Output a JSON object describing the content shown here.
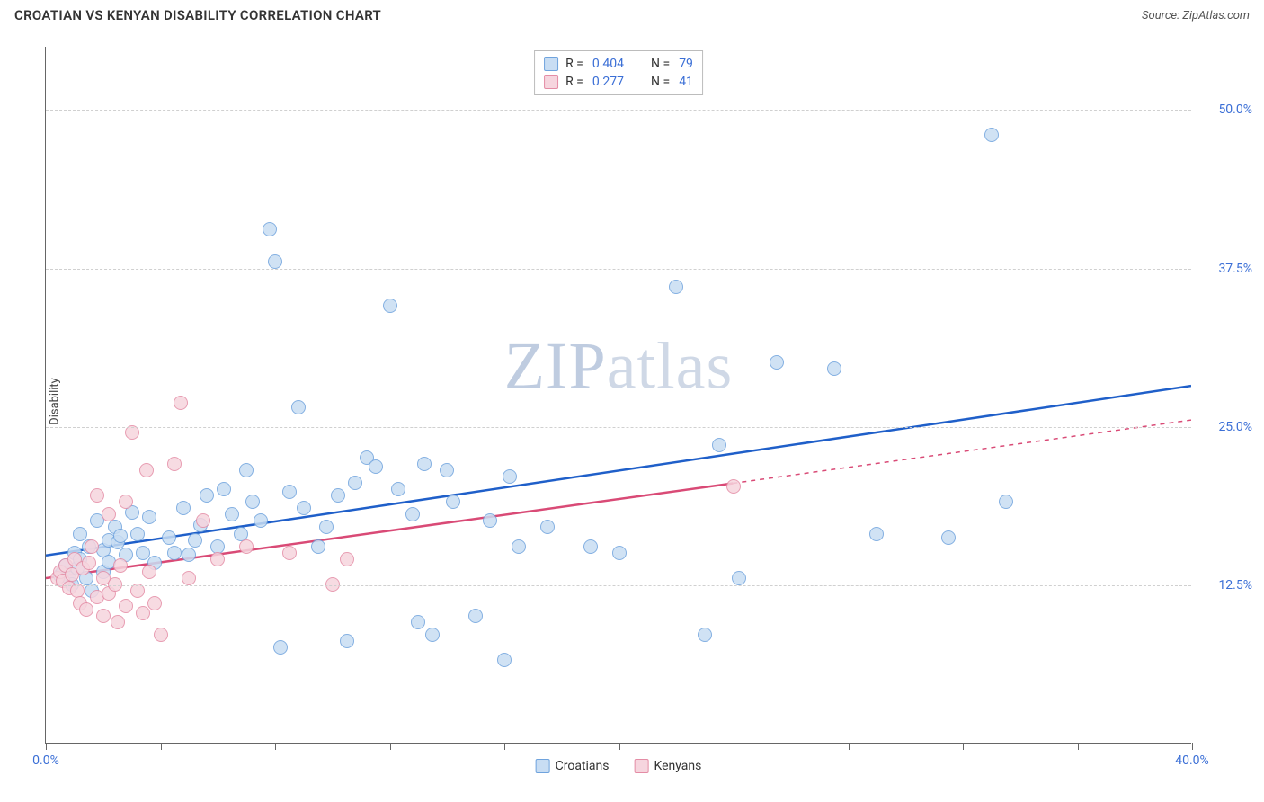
{
  "header": {
    "title": "CROATIAN VS KENYAN DISABILITY CORRELATION CHART",
    "source": "Source: ZipAtlas.com"
  },
  "watermark": {
    "zip": "ZIP",
    "atlas": "atlas"
  },
  "chart": {
    "type": "scatter",
    "ylabel": "Disability",
    "xlim": [
      0,
      40
    ],
    "ylim": [
      0,
      55
    ],
    "xtick_positions": [
      0,
      4,
      8,
      12,
      16,
      20,
      24,
      28,
      32,
      36,
      40
    ],
    "xtick_labels": {
      "0": "0.0%",
      "40": "40.0%"
    },
    "ytick_positions": [
      12.5,
      25.0,
      37.5,
      50.0
    ],
    "ytick_labels": [
      "12.5%",
      "25.0%",
      "37.5%",
      "50.0%"
    ],
    "grid_color": "#d0d0d0",
    "axis_color": "#666666",
    "background_color": "#ffffff",
    "tick_label_color": "#3b6fd6",
    "point_radius": 8,
    "series": [
      {
        "name": "Croatians",
        "fill": "#c8ddf3",
        "stroke": "#6fa3dd",
        "trend_color": "#1f5fc9",
        "trend": {
          "x1": 0,
          "y1": 14.8,
          "x2": 40,
          "y2": 28.2,
          "dash_after_x": null
        },
        "stats": {
          "R": "0.404",
          "N": "79"
        },
        "points": [
          [
            0.5,
            13.2
          ],
          [
            0.6,
            13.5
          ],
          [
            0.7,
            14.0
          ],
          [
            0.8,
            13.0
          ],
          [
            0.9,
            12.5
          ],
          [
            1.0,
            15.0
          ],
          [
            1.1,
            13.8
          ],
          [
            1.2,
            14.5
          ],
          [
            1.2,
            16.5
          ],
          [
            1.4,
            13.0
          ],
          [
            1.5,
            15.5
          ],
          [
            1.6,
            12.0
          ],
          [
            1.8,
            17.5
          ],
          [
            2.0,
            15.2
          ],
          [
            2.0,
            13.5
          ],
          [
            2.2,
            16.0
          ],
          [
            2.2,
            14.3
          ],
          [
            2.4,
            17.0
          ],
          [
            2.5,
            15.8
          ],
          [
            2.6,
            16.3
          ],
          [
            2.8,
            14.8
          ],
          [
            3.0,
            18.2
          ],
          [
            3.2,
            16.5
          ],
          [
            3.4,
            15.0
          ],
          [
            3.6,
            17.8
          ],
          [
            3.8,
            14.2
          ],
          [
            4.3,
            16.2
          ],
          [
            4.5,
            15.0
          ],
          [
            4.8,
            18.5
          ],
          [
            5.0,
            14.8
          ],
          [
            5.2,
            16.0
          ],
          [
            5.4,
            17.2
          ],
          [
            5.6,
            19.5
          ],
          [
            6.0,
            15.5
          ],
          [
            6.2,
            20.0
          ],
          [
            6.5,
            18.0
          ],
          [
            6.8,
            16.5
          ],
          [
            7.0,
            21.5
          ],
          [
            7.2,
            19.0
          ],
          [
            7.5,
            17.5
          ],
          [
            7.8,
            40.5
          ],
          [
            8.0,
            38.0
          ],
          [
            8.2,
            7.5
          ],
          [
            8.5,
            19.8
          ],
          [
            8.8,
            26.5
          ],
          [
            9.0,
            18.5
          ],
          [
            9.5,
            15.5
          ],
          [
            9.8,
            17.0
          ],
          [
            10.2,
            19.5
          ],
          [
            10.5,
            8.0
          ],
          [
            10.8,
            20.5
          ],
          [
            11.2,
            22.5
          ],
          [
            11.5,
            21.8
          ],
          [
            12.0,
            34.5
          ],
          [
            12.3,
            20.0
          ],
          [
            12.8,
            18.0
          ],
          [
            13.0,
            9.5
          ],
          [
            13.2,
            22.0
          ],
          [
            13.5,
            8.5
          ],
          [
            14.0,
            21.5
          ],
          [
            14.2,
            19.0
          ],
          [
            15.0,
            10.0
          ],
          [
            15.5,
            17.5
          ],
          [
            16.0,
            6.5
          ],
          [
            16.2,
            21.0
          ],
          [
            16.5,
            15.5
          ],
          [
            17.5,
            17.0
          ],
          [
            20.0,
            15.0
          ],
          [
            22.0,
            36.0
          ],
          [
            23.0,
            8.5
          ],
          [
            23.5,
            23.5
          ],
          [
            24.2,
            13.0
          ],
          [
            25.5,
            30.0
          ],
          [
            27.5,
            29.5
          ],
          [
            29.0,
            16.5
          ],
          [
            33.0,
            48.0
          ],
          [
            33.5,
            19.0
          ],
          [
            31.5,
            16.2
          ],
          [
            19.0,
            15.5
          ]
        ]
      },
      {
        "name": "Kenyans",
        "fill": "#f6d5de",
        "stroke": "#e48ca5",
        "trend_color": "#d94a76",
        "trend": {
          "x1": 0,
          "y1": 13.0,
          "x2": 40,
          "y2": 25.5,
          "dash_after_x": 24
        },
        "stats": {
          "R": "0.277",
          "N": "41"
        },
        "points": [
          [
            0.4,
            13.0
          ],
          [
            0.5,
            13.5
          ],
          [
            0.6,
            12.8
          ],
          [
            0.7,
            14.0
          ],
          [
            0.8,
            12.2
          ],
          [
            0.9,
            13.3
          ],
          [
            1.0,
            14.5
          ],
          [
            1.1,
            12.0
          ],
          [
            1.2,
            11.0
          ],
          [
            1.3,
            13.8
          ],
          [
            1.4,
            10.5
          ],
          [
            1.5,
            14.2
          ],
          [
            1.6,
            15.5
          ],
          [
            1.8,
            19.5
          ],
          [
            1.8,
            11.5
          ],
          [
            2.0,
            13.0
          ],
          [
            2.0,
            10.0
          ],
          [
            2.2,
            18.0
          ],
          [
            2.2,
            11.8
          ],
          [
            2.4,
            12.5
          ],
          [
            2.5,
            9.5
          ],
          [
            2.6,
            14.0
          ],
          [
            2.8,
            10.8
          ],
          [
            2.8,
            19.0
          ],
          [
            3.0,
            24.5
          ],
          [
            3.2,
            12.0
          ],
          [
            3.4,
            10.2
          ],
          [
            3.5,
            21.5
          ],
          [
            3.6,
            13.5
          ],
          [
            3.8,
            11.0
          ],
          [
            4.0,
            8.5
          ],
          [
            4.5,
            22.0
          ],
          [
            4.7,
            26.8
          ],
          [
            5.0,
            13.0
          ],
          [
            5.5,
            17.5
          ],
          [
            6.0,
            14.5
          ],
          [
            7.0,
            15.5
          ],
          [
            8.5,
            15.0
          ],
          [
            10.0,
            12.5
          ],
          [
            10.5,
            14.5
          ],
          [
            24.0,
            20.2
          ]
        ]
      }
    ],
    "stats_box": {
      "label_r": "R =",
      "label_n": "N ="
    },
    "bottom_legend": [
      {
        "label": "Croatians",
        "fill": "#c8ddf3",
        "stroke": "#6fa3dd"
      },
      {
        "label": "Kenyans",
        "fill": "#f6d5de",
        "stroke": "#e48ca5"
      }
    ]
  }
}
